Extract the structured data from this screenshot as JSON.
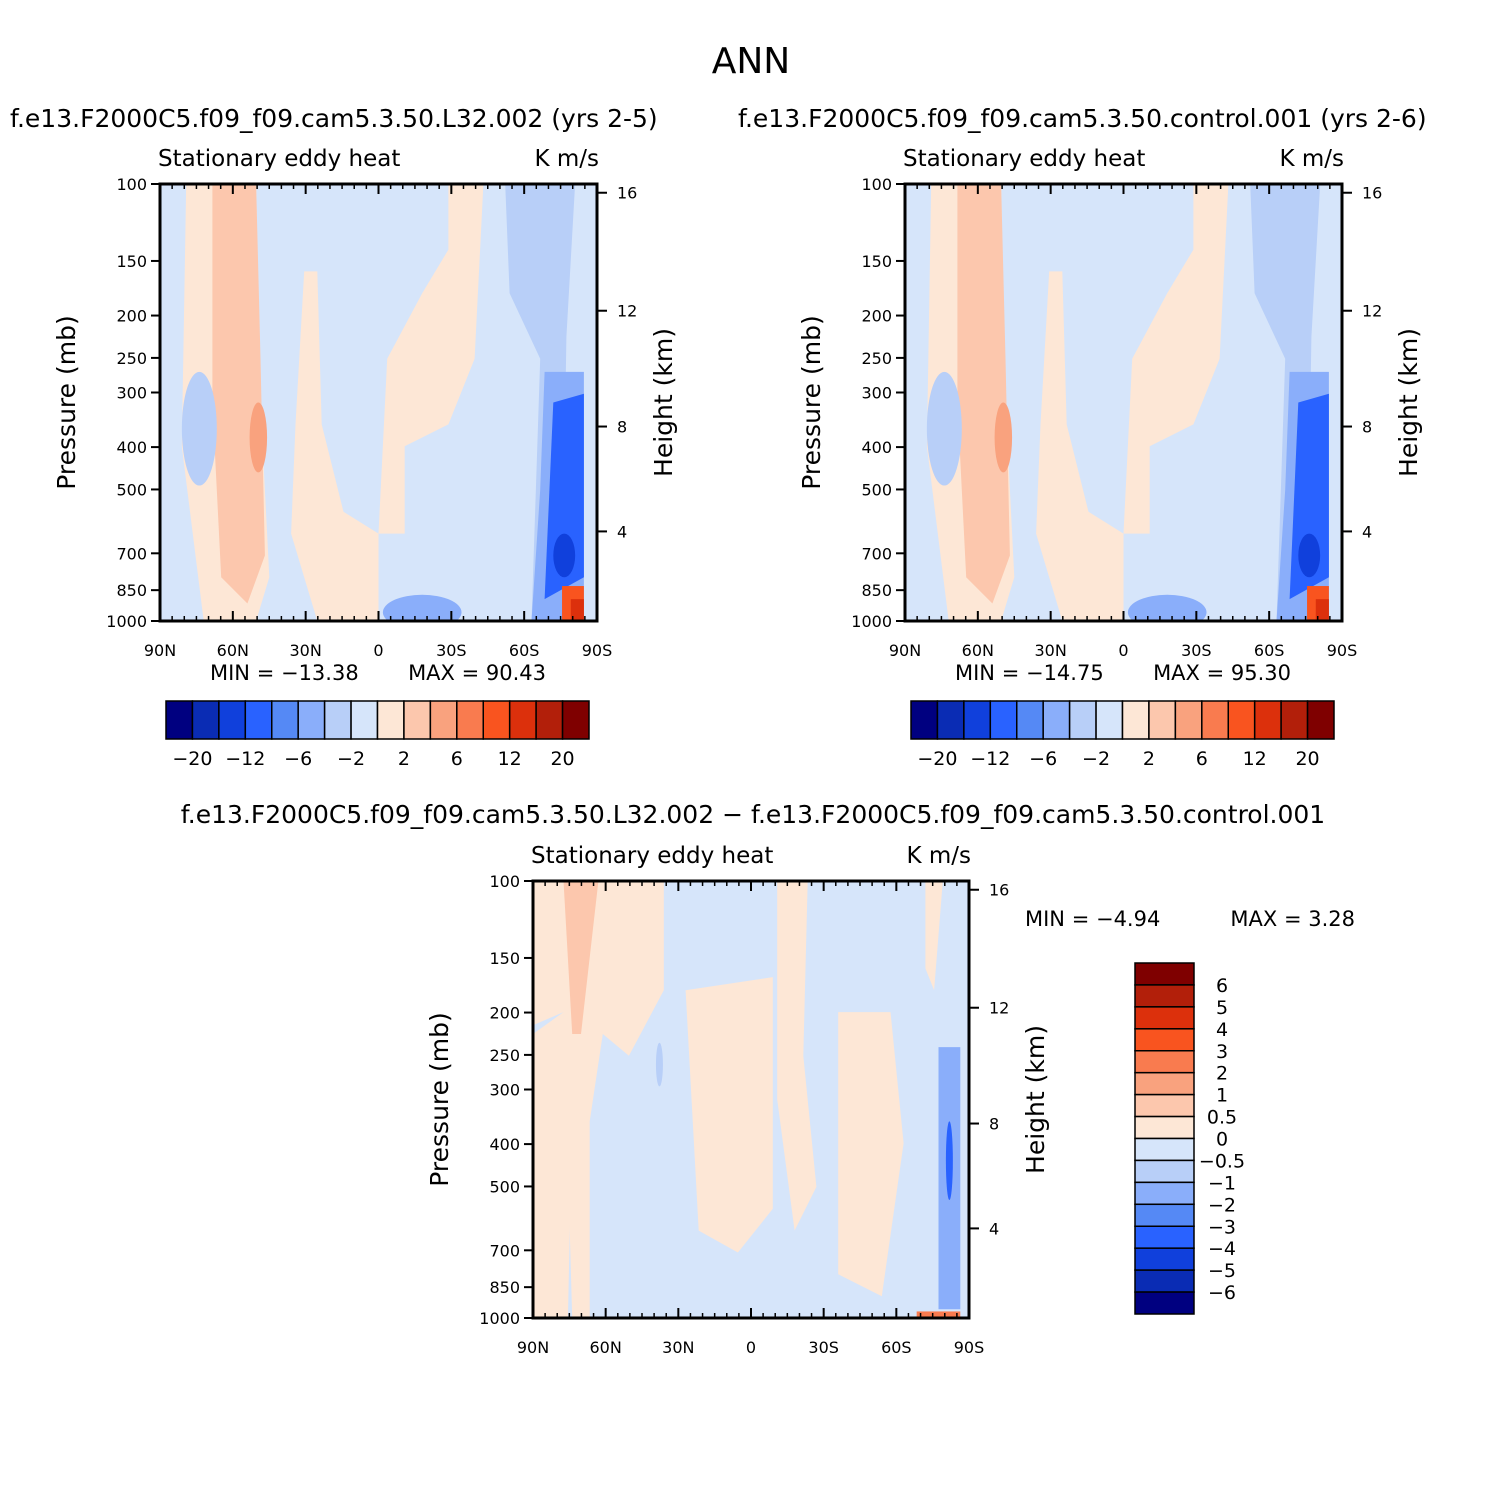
{
  "figure": {
    "title": "ANN",
    "variable": "Stationary eddy heat",
    "units": "K m/s",
    "ylabel_left": "Pressure (mb)",
    "ylabel_right": "Height (km)",
    "pressure_ticks": [
      "100",
      "150",
      "200",
      "250",
      "300",
      "400",
      "500",
      "700",
      "850",
      "1000"
    ],
    "height_ticks": [
      "16",
      "12",
      "8",
      "4"
    ],
    "lat_ticks": [
      "90N",
      "60N",
      "30N",
      "0",
      "30S",
      "60S",
      "90S"
    ],
    "colors": {
      "d6": "#000080",
      "d5": "#0a2cb4",
      "d4": "#1040dc",
      "d3": "#2962ff",
      "d2": "#5589f5",
      "d1": "#8aaefa",
      "d05": "#b8cff8",
      "d0": "#d6e5fa",
      "p0": "#fde7d6",
      "p05": "#fcc7ad",
      "p1": "#f9a27e",
      "p2": "#f97b4f",
      "p3": "#f9541f",
      "p4": "#dc300c",
      "p5": "#b21f0a",
      "p6": "#7f0000"
    }
  },
  "chart_data": [
    {
      "type": "heatmap",
      "title": "f.e13.F2000C5.f09_f09.cam5.3.50.L32.002 (yrs 2-5)",
      "left_label": "Stationary eddy heat",
      "right_label": "K m/s",
      "xlabel": "",
      "ylabel": "Pressure (mb)",
      "y2label": "Height (km)",
      "xlim": [
        "90N",
        "90S"
      ],
      "ylim": [
        1000,
        100
      ],
      "min_text": "MIN = −13.38",
      "max_text": "MAX = 90.43",
      "colorbar_labels": [
        "−20",
        "−12",
        "−6",
        "−2",
        "2",
        "6",
        "12",
        "20"
      ],
      "levels": [
        -20,
        -16,
        -12,
        -9,
        -6,
        -4,
        -2,
        0,
        2,
        4,
        6,
        9,
        12,
        16,
        20
      ]
    },
    {
      "type": "heatmap",
      "title": "f.e13.F2000C5.f09_f09.cam5.3.50.control.001 (yrs 2-6)",
      "left_label": "Stationary eddy heat",
      "right_label": "K m/s",
      "xlabel": "",
      "ylabel": "Pressure (mb)",
      "y2label": "Height (km)",
      "xlim": [
        "90N",
        "90S"
      ],
      "ylim": [
        1000,
        100
      ],
      "min_text": "MIN = −14.75",
      "max_text": "MAX = 95.30",
      "colorbar_labels": [
        "−20",
        "−12",
        "−6",
        "−2",
        "2",
        "6",
        "12",
        "20"
      ],
      "levels": [
        -20,
        -16,
        -12,
        -9,
        -6,
        -4,
        -2,
        0,
        2,
        4,
        6,
        9,
        12,
        16,
        20
      ]
    },
    {
      "type": "heatmap",
      "title": "f.e13.F2000C5.f09_f09.cam5.3.50.L32.002 − f.e13.F2000C5.f09_f09.cam5.3.50.control.001",
      "left_label": "Stationary eddy heat",
      "right_label": "K m/s",
      "xlabel": "",
      "ylabel": "Pressure (mb)",
      "y2label": "Height (km)",
      "xlim": [
        "90N",
        "90S"
      ],
      "ylim": [
        1000,
        100
      ],
      "min_text": "MIN = −4.94",
      "max_text": "MAX = 3.28",
      "colorbar_labels": [
        "6",
        "5",
        "4",
        "3",
        "2",
        "1",
        "0.5",
        "0",
        "−0.5",
        "−1",
        "−2",
        "−3",
        "−4",
        "−5",
        "−6"
      ],
      "levels": [
        6,
        5,
        4,
        3,
        2,
        1,
        0.5,
        0,
        -0.5,
        -1,
        -2,
        -3,
        -4,
        -5,
        -6
      ]
    }
  ]
}
